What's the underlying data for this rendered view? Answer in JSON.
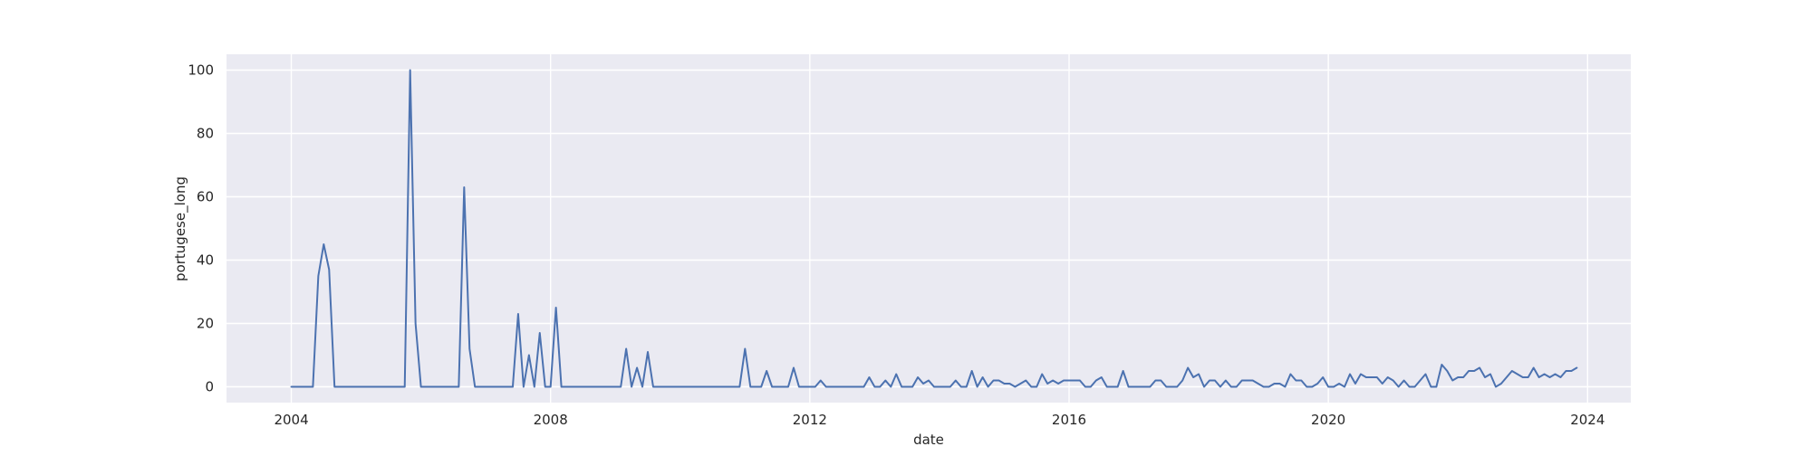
{
  "chart_data": {
    "type": "line",
    "title": "",
    "xlabel": "date",
    "ylabel": "portugese_long",
    "xlim": [
      "2003-01-01",
      "2024-09-01"
    ],
    "ylim": [
      -5,
      105
    ],
    "x_ticks": [
      "2004",
      "2008",
      "2012",
      "2016",
      "2020",
      "2024"
    ],
    "y_ticks": [
      0,
      20,
      40,
      60,
      80,
      100
    ],
    "grid": true,
    "legend": "none",
    "colors": {
      "background": "#eaeaf2",
      "grid": "#ffffff",
      "line": "#4c72b0",
      "text": "#262626"
    },
    "series": [
      {
        "x_start": "2004-01",
        "x_step": "month",
        "values": [
          0,
          0,
          0,
          0,
          0,
          35,
          45,
          37,
          0,
          0,
          0,
          0,
          0,
          0,
          0,
          0,
          0,
          0,
          0,
          0,
          0,
          0,
          100,
          20,
          0,
          0,
          0,
          0,
          0,
          0,
          0,
          0,
          63,
          12,
          0,
          0,
          0,
          0,
          0,
          0,
          0,
          0,
          23,
          0,
          10,
          0,
          17,
          0,
          0,
          25,
          0,
          0,
          0,
          0,
          0,
          0,
          0,
          0,
          0,
          0,
          0,
          0,
          12,
          0,
          6,
          0,
          11,
          0,
          0,
          0,
          0,
          0,
          0,
          0,
          0,
          0,
          0,
          0,
          0,
          0,
          0,
          0,
          0,
          0,
          12,
          0,
          0,
          0,
          5,
          0,
          0,
          0,
          0,
          6,
          0,
          0,
          0,
          0,
          2,
          0,
          0,
          0,
          0,
          0,
          0,
          0,
          0,
          3,
          0,
          0,
          2,
          0,
          4,
          0,
          0,
          0,
          3,
          1,
          2,
          0,
          0,
          0,
          0,
          2,
          0,
          0,
          5,
          0,
          3,
          0,
          2,
          2,
          1,
          1,
          0,
          1,
          2,
          0,
          0,
          4,
          1,
          2,
          1,
          2,
          2,
          2,
          2,
          0,
          0,
          2,
          3,
          0,
          0,
          0,
          5,
          0,
          0,
          0,
          0,
          0,
          2,
          2,
          0,
          0,
          0,
          2,
          6,
          3,
          4,
          0,
          2,
          2,
          0,
          2,
          0,
          0,
          2,
          2,
          2,
          1,
          0,
          0,
          1,
          1,
          0,
          4,
          2,
          2,
          0,
          0,
          1,
          3,
          0,
          0,
          1,
          0,
          4,
          1,
          4,
          3,
          3,
          3,
          1,
          3,
          2,
          0,
          2,
          0,
          0,
          2,
          4,
          0,
          0,
          7,
          5,
          2,
          3,
          3,
          5,
          5,
          6,
          3,
          4,
          0,
          1,
          3,
          5,
          4,
          3,
          3,
          6,
          3,
          4,
          3,
          4,
          3,
          5,
          5,
          6
        ]
      }
    ]
  }
}
